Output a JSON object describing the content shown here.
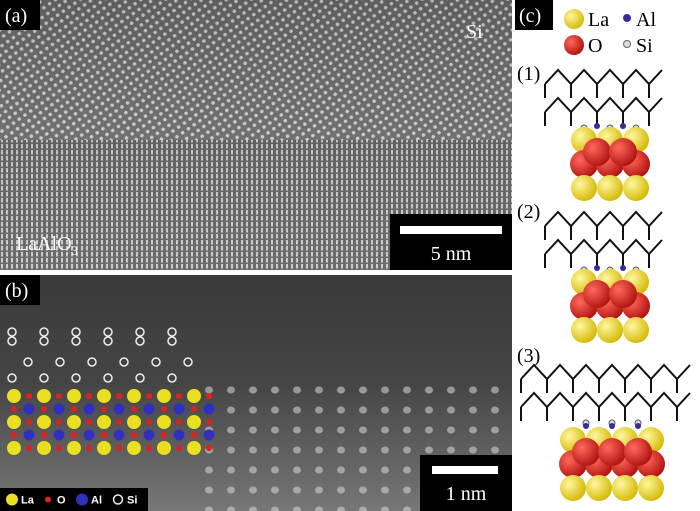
{
  "panel_a": {
    "label": "(a)",
    "top_label": "Si",
    "bottom_label": {
      "text": "LaAlO",
      "subscript": "3"
    },
    "scale_bar": "5 nm"
  },
  "panel_b": {
    "label": "(b)",
    "scale_bar": "1 nm",
    "legend": [
      "La",
      "O",
      "Al",
      "Si"
    ]
  },
  "panel_c": {
    "label": "(c)",
    "legend": [
      "La",
      "Al",
      "O",
      "Si"
    ],
    "steps": [
      "(1)",
      "(2)",
      "(3)"
    ]
  }
}
